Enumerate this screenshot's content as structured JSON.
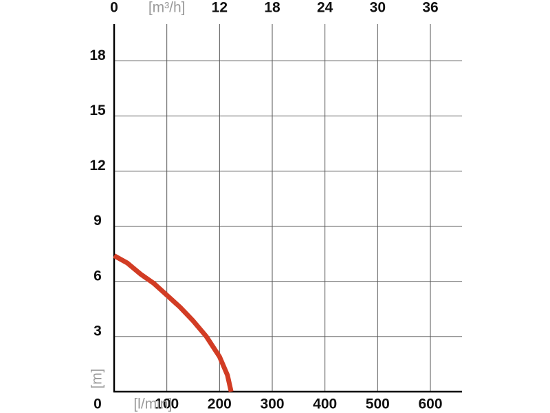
{
  "chart_data": {
    "type": "line",
    "xlabel": "[l/min]",
    "ylabel": "[m]",
    "x": [
      0,
      25,
      50,
      75,
      100,
      125,
      150,
      175,
      200,
      215,
      222
    ],
    "series": [
      {
        "color": "#d23c24",
        "values": [
          7.4,
          7.0,
          6.4,
          5.9,
          5.25,
          4.6,
          3.85,
          3.0,
          1.9,
          0.9,
          0
        ]
      }
    ],
    "xlim": [
      0,
      660
    ],
    "ylim": [
      0,
      20
    ],
    "xticks": [
      100,
      200,
      300,
      400,
      500,
      600
    ],
    "yticks": [
      0,
      3,
      6,
      9,
      12,
      15,
      18
    ],
    "x2lim": [
      0,
      39.6
    ],
    "x2ticks": [
      0,
      {
        "value": 6,
        "label": "[m³/h]"
      },
      12,
      18,
      24,
      30,
      36
    ],
    "grid": true
  }
}
